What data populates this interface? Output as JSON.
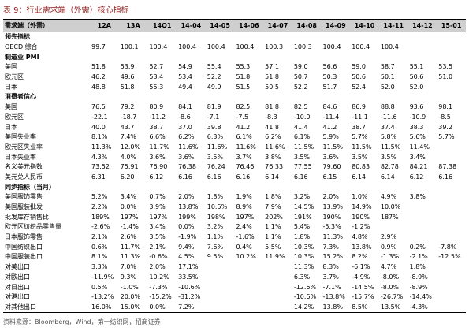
{
  "title": "表 9：行业需求端（外需）核心指标",
  "table": {
    "header": [
      "需求端（外需）",
      "12A",
      "13A",
      "14Q1",
      "14-04",
      "14-05",
      "14-06",
      "14-07",
      "14-08",
      "14-09",
      "14-10",
      "14-11",
      "14-12",
      "15-01"
    ],
    "rows": [
      {
        "section": "领先指标"
      },
      {
        "label": "OECD 综合",
        "cells": [
          "99.7",
          "100.1",
          "100.4",
          "100.4",
          "100.4",
          "100.4",
          "100.3",
          "100.3",
          "100.4",
          "100.4",
          "100.4",
          null,
          null
        ]
      },
      {
        "section": "制造业 PMI"
      },
      {
        "label": "美国",
        "cells": [
          "51.8",
          "53.9",
          "52.7",
          "54.9",
          "55.4",
          "55.3",
          "57.1",
          "59.0",
          "56.6",
          "59.0",
          "58.7",
          "55.1",
          "53.5"
        ]
      },
      {
        "label": "欧元区",
        "cells": [
          "46.2",
          "49.6",
          "53.4",
          "53.4",
          "52.2",
          "51.8",
          "51.8",
          "50.7",
          "50.3",
          "50.6",
          "50.1",
          "50.6",
          "51.0"
        ]
      },
      {
        "label": "日本",
        "cells": [
          "48.8",
          "51.8",
          "55.3",
          "49.4",
          "49.9",
          "51.5",
          "50.5",
          "52.2",
          "51.7",
          "52.4",
          "52.0",
          "52.0",
          null
        ]
      },
      {
        "section": "消费者信心"
      },
      {
        "label": "美国",
        "cells": [
          "76.5",
          "79.2",
          "80.9",
          "84.1",
          "81.9",
          "82.5",
          "81.8",
          "82.5",
          "84.6",
          "86.9",
          "88.8",
          "93.6",
          "98.1"
        ]
      },
      {
        "label": "欧元区",
        "cells": [
          "-22.1",
          "-18.7",
          "-11.2",
          "-8.6",
          "-7.1",
          "-7.5",
          "-8.3",
          "-10.0",
          "-11.4",
          "-11.1",
          "-11.6",
          "-10.9",
          "-8.5"
        ]
      },
      {
        "label": "日本",
        "cells": [
          "40.0",
          "43.7",
          "38.7",
          "37.0",
          "39.8",
          "41.2",
          "41.8",
          "41.4",
          "41.2",
          "38.7",
          "37.4",
          "38.3",
          "39.2"
        ]
      },
      {
        "label": "美国失业率",
        "cells": [
          "8.1%",
          "7.4%",
          "6.6%",
          "6.2%",
          "6.3%",
          "6.1%",
          "6.2%",
          "6.1%",
          "5.9%",
          "5.7%",
          "5.8%",
          "5.6%",
          "5.7%"
        ]
      },
      {
        "label": "欧元区失业率",
        "cells": [
          "11.3%",
          "12.0%",
          "11.7%",
          "11.6%",
          "11.6%",
          "11.6%",
          "11.6%",
          "11.5%",
          "11.5%",
          "11.5%",
          "11.5%",
          "11.4%",
          null
        ]
      },
      {
        "label": "日本失业率",
        "cells": [
          "4.3%",
          "4.0%",
          "3.6%",
          "3.6%",
          "3.5%",
          "3.7%",
          "3.8%",
          "3.5%",
          "3.6%",
          "3.5%",
          "3.5%",
          "3.4%",
          null
        ]
      },
      {
        "label": "名义美元指数",
        "cells": [
          "73.52",
          "75.91",
          "76.90",
          "76.38",
          "76.24",
          "76.46",
          "76.33",
          "77.55",
          "79.60",
          "80.83",
          "82.78",
          "84.21",
          "87.38"
        ]
      },
      {
        "label": "美元兑人民币",
        "cells": [
          "6.31",
          "6.20",
          "6.12",
          "6.16",
          "6.16",
          "6.16",
          "6.14",
          "6.16",
          "6.15",
          "6.14",
          "6.14",
          "6.12",
          "6.16"
        ]
      },
      {
        "section": "同步指标（当月）"
      },
      {
        "label": "美国服饰零售",
        "cells": [
          "5.2%",
          "3.4%",
          "0.7%",
          "2.0%",
          "1.8%",
          "1.9%",
          "1.8%",
          "3.2%",
          "2.0%",
          "1.0%",
          "4.9%",
          "3.8%",
          null
        ]
      },
      {
        "label": "美国服装批发",
        "cells": [
          "2.2%",
          "0.0%",
          "3.9%",
          "13.8%",
          "10.5%",
          "8.9%",
          "7.9%",
          "14.5%",
          "13.9%",
          "14.9%",
          "10.0%",
          null,
          null
        ]
      },
      {
        "label": "批发库存销售比",
        "cells": [
          "189%",
          "197%",
          "197%",
          "199%",
          "198%",
          "197%",
          "202%",
          "191%",
          "190%",
          "190%",
          "187%",
          null,
          null
        ]
      },
      {
        "label": "欧元区纺织品零售量",
        "cells": [
          "-2.6%",
          "-1.4%",
          "3.4%",
          "0.0%",
          "3.2%",
          "2.4%",
          "1.1%",
          "5.4%",
          "-5.3%",
          "-1.2%",
          null,
          null,
          null
        ]
      },
      {
        "label": "日本服饰零售",
        "cells": [
          "2.1%",
          "2.6%",
          "3.5%",
          "-1.9%",
          "1.1%",
          "-1.6%",
          "1.1%",
          "1.8%",
          "11.3%",
          "4.8%",
          "2.9%",
          null,
          null
        ]
      },
      {
        "label": "中国纺织出口",
        "cells": [
          "0.6%",
          "11.7%",
          "2.1%",
          "9.4%",
          "7.6%",
          "0.4%",
          "5.5%",
          "10.3%",
          "7.3%",
          "13.8%",
          "0.9%",
          "0.2%",
          "-7.8%"
        ]
      },
      {
        "label": "中国服装出口",
        "cells": [
          "8.1%",
          "11.3%",
          "-0.6%",
          "4.5%",
          "9.5%",
          "10.2%",
          "11.9%",
          "10.3%",
          "15.2%",
          "8.2%",
          "-1.3%",
          "-2.1%",
          "-12.5%"
        ]
      },
      {
        "label": "对美出口",
        "cells": [
          "3.3%",
          "7.0%",
          "2.0%",
          "17.1%",
          null,
          null,
          null,
          "11.3%",
          "8.3%",
          "-6.1%",
          "4.7%",
          "1.8%",
          null
        ]
      },
      {
        "label": "对欧出口",
        "cells": [
          "-11.9%",
          "9.3%",
          "10.2%",
          "33.5%",
          null,
          null,
          null,
          "6.3%",
          "3.7%",
          "-4.9%",
          "-8.0%",
          "-8.9%",
          null
        ]
      },
      {
        "label": "对日出口",
        "cells": [
          "0.5%",
          "-1.0%",
          "-7.3%",
          "-10.6%",
          null,
          null,
          null,
          "-12.6%",
          "-7.1%",
          "-14.5%",
          "-8.0%",
          "-8.9%",
          null
        ]
      },
      {
        "label": "对港出口",
        "cells": [
          "-13.2%",
          "20.0%",
          "-15.2%",
          "-31.2%",
          null,
          null,
          null,
          "-10.6%",
          "-13.8%",
          "-15.7%",
          "-26.7%",
          "-14.4%",
          null
        ]
      },
      {
        "label": "对其他出口",
        "cells": [
          "16.0%",
          "15.0%",
          "0.0%",
          "7.2%",
          null,
          null,
          null,
          "14.2%",
          "13.8%",
          "8.5%",
          "13.5%",
          "-4.3%",
          null
        ]
      }
    ]
  },
  "source": "资料来源：Bloomberg，Wind，第一纺织网，招商证券"
}
